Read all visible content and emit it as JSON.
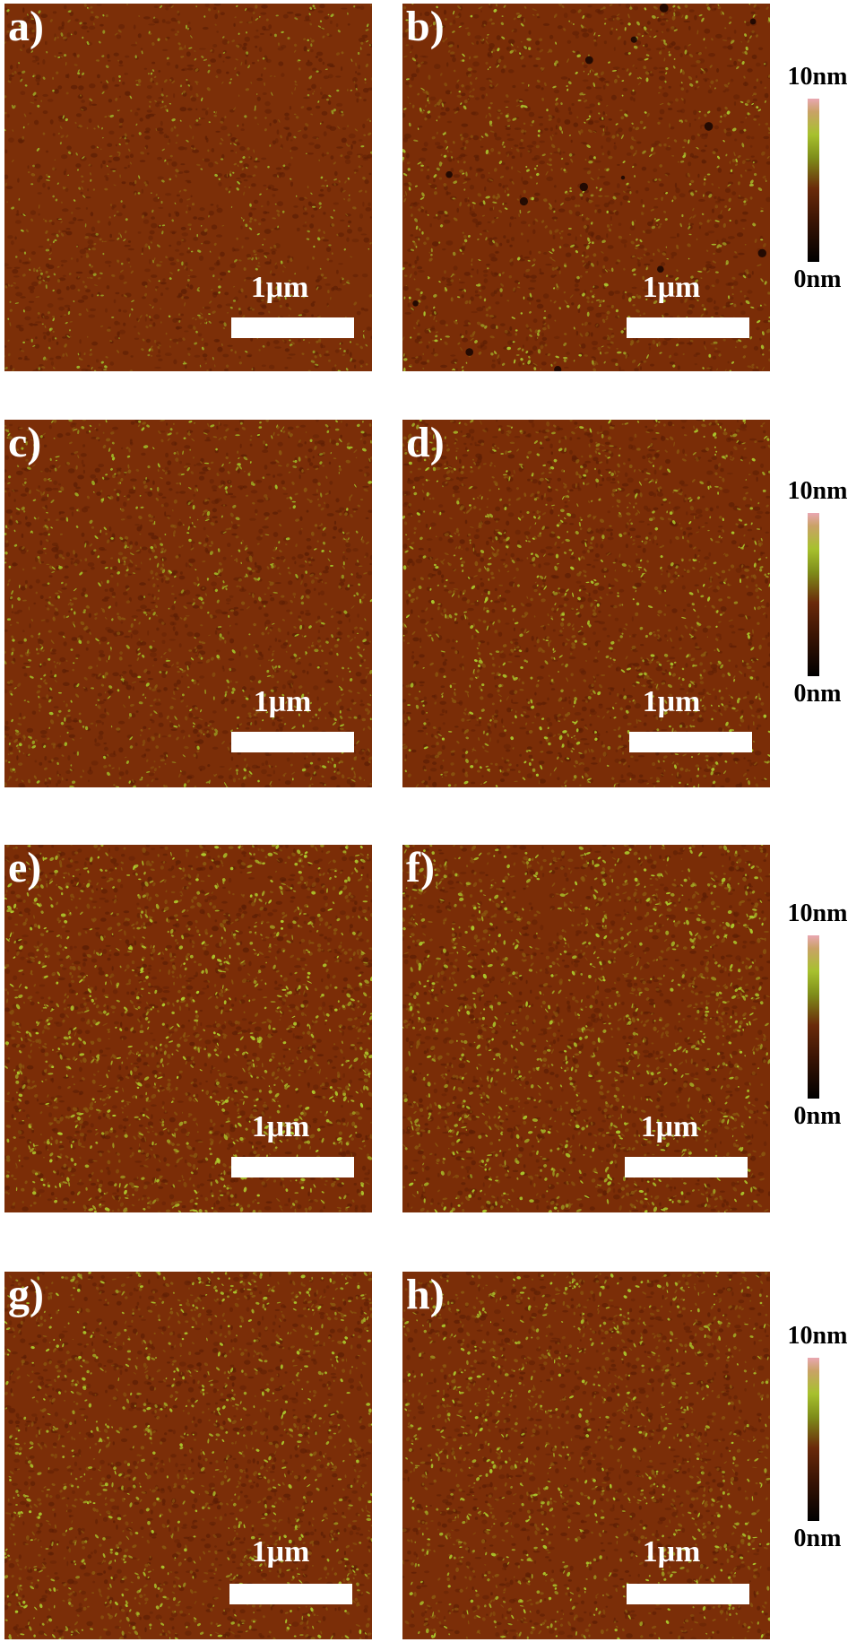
{
  "panels": [
    {
      "label": "a)",
      "scale": "1μm",
      "seed": 11,
      "density": 0.1,
      "size": 1.6,
      "color": "#9bb52a",
      "base": "#7c2f08"
    },
    {
      "label": "b)",
      "scale": "1μm",
      "seed": 23,
      "density": 0.13,
      "size": 2.0,
      "color": "#a7c12e",
      "base": "#7a2d07"
    },
    {
      "label": "c)",
      "scale": "1μm",
      "seed": 37,
      "density": 0.14,
      "size": 2.0,
      "color": "#9fbc28",
      "base": "#7b2e08"
    },
    {
      "label": "d)",
      "scale": "1μm",
      "seed": 41,
      "density": 0.16,
      "size": 2.1,
      "color": "#a8c52c",
      "base": "#7a2d07"
    },
    {
      "label": "e)",
      "scale": "1μm",
      "seed": 53,
      "density": 0.2,
      "size": 2.4,
      "color": "#adc92d",
      "base": "#7b2d07"
    },
    {
      "label": "f)",
      "scale": "1μm",
      "seed": 67,
      "density": 0.19,
      "size": 2.4,
      "color": "#a9c62c",
      "base": "#7a2d07"
    },
    {
      "label": "g)",
      "scale": "1μm",
      "seed": 79,
      "density": 0.17,
      "size": 2.1,
      "color": "#a8c52c",
      "base": "#7b2e08"
    },
    {
      "label": "h)",
      "scale": "1μm",
      "seed": 83,
      "density": 0.17,
      "size": 2.1,
      "color": "#a8c52c",
      "base": "#7b2e08"
    }
  ],
  "colorbars": [
    {
      "top_label": "10nm",
      "bottom_label": "0nm"
    },
    {
      "top_label": "10nm",
      "bottom_label": "0nm"
    },
    {
      "top_label": "10nm",
      "bottom_label": "0nm"
    },
    {
      "top_label": "10nm",
      "bottom_label": "0nm"
    }
  ]
}
